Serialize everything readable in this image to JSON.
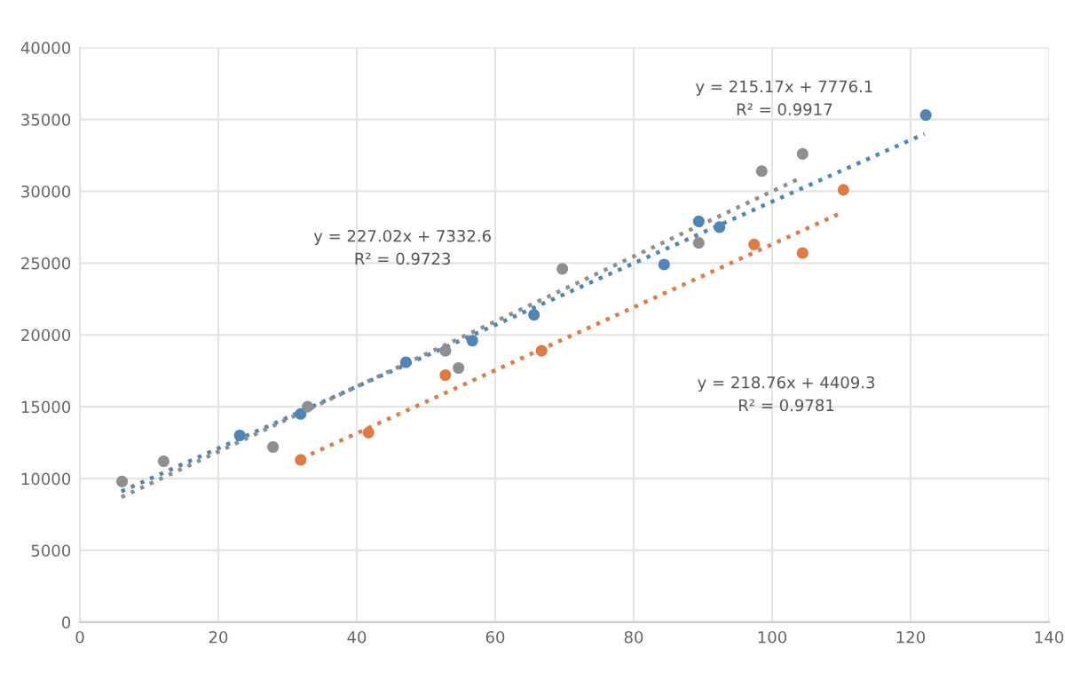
{
  "chart_data": {
    "type": "scatter",
    "xlim": [
      0,
      140
    ],
    "xticks": [
      0,
      20,
      40,
      60,
      80,
      100,
      120,
      140
    ],
    "ylim": [
      0,
      40000
    ],
    "yticks": [
      0,
      5000,
      10000,
      15000,
      20000,
      25000,
      30000,
      35000,
      40000
    ],
    "grid": true,
    "series": [
      {
        "marker": "circle",
        "color": "#4e86b8",
        "x": [
          23.1,
          31.9,
          47.1,
          56.7,
          65.6,
          84.4,
          89.4,
          92.4,
          122.2
        ],
        "values": [
          13000,
          14500,
          18100,
          19600,
          21400,
          24900,
          27900,
          27500,
          35300
        ]
      },
      {
        "marker": "circle",
        "color": "#e07b44",
        "x": [
          31.9,
          41.7,
          52.8,
          66.7,
          97.4,
          104.4,
          110.3
        ],
        "values": [
          11300,
          13200,
          17200,
          18900,
          26300,
          25700,
          30100
        ]
      },
      {
        "marker": "circle",
        "color": "#8f8f8f",
        "x": [
          6.1,
          12.1,
          27.9,
          32.9,
          52.8,
          54.7,
          69.7,
          89.4,
          98.5,
          104.4
        ],
        "values": [
          9800,
          11200,
          12200,
          15000,
          18900,
          17700,
          24600,
          26400,
          31400,
          32600
        ]
      },
      {
        "type": "line",
        "marker": "none",
        "line_style": "dotted",
        "color": "#4e86b8",
        "x": [
          6,
          122
        ],
        "values": [
          9100,
          34000
        ]
      },
      {
        "type": "line",
        "marker": "none",
        "line_style": "dotted",
        "color": "#e07b44",
        "x": [
          32,
          110
        ],
        "values": [
          11400,
          28500
        ]
      },
      {
        "type": "line",
        "marker": "none",
        "line_style": "dotted",
        "color": "#8f8f8f",
        "x": [
          6,
          104
        ],
        "values": [
          8700,
          30900
        ]
      }
    ],
    "annotations": [
      "y = 215.17x + 7776.1\nR² = 0.9917",
      "y = 227.02x + 7332.6\nR² = 0.9723",
      "y = 218.76x + 4409.3\nR² = 0.9781"
    ]
  }
}
